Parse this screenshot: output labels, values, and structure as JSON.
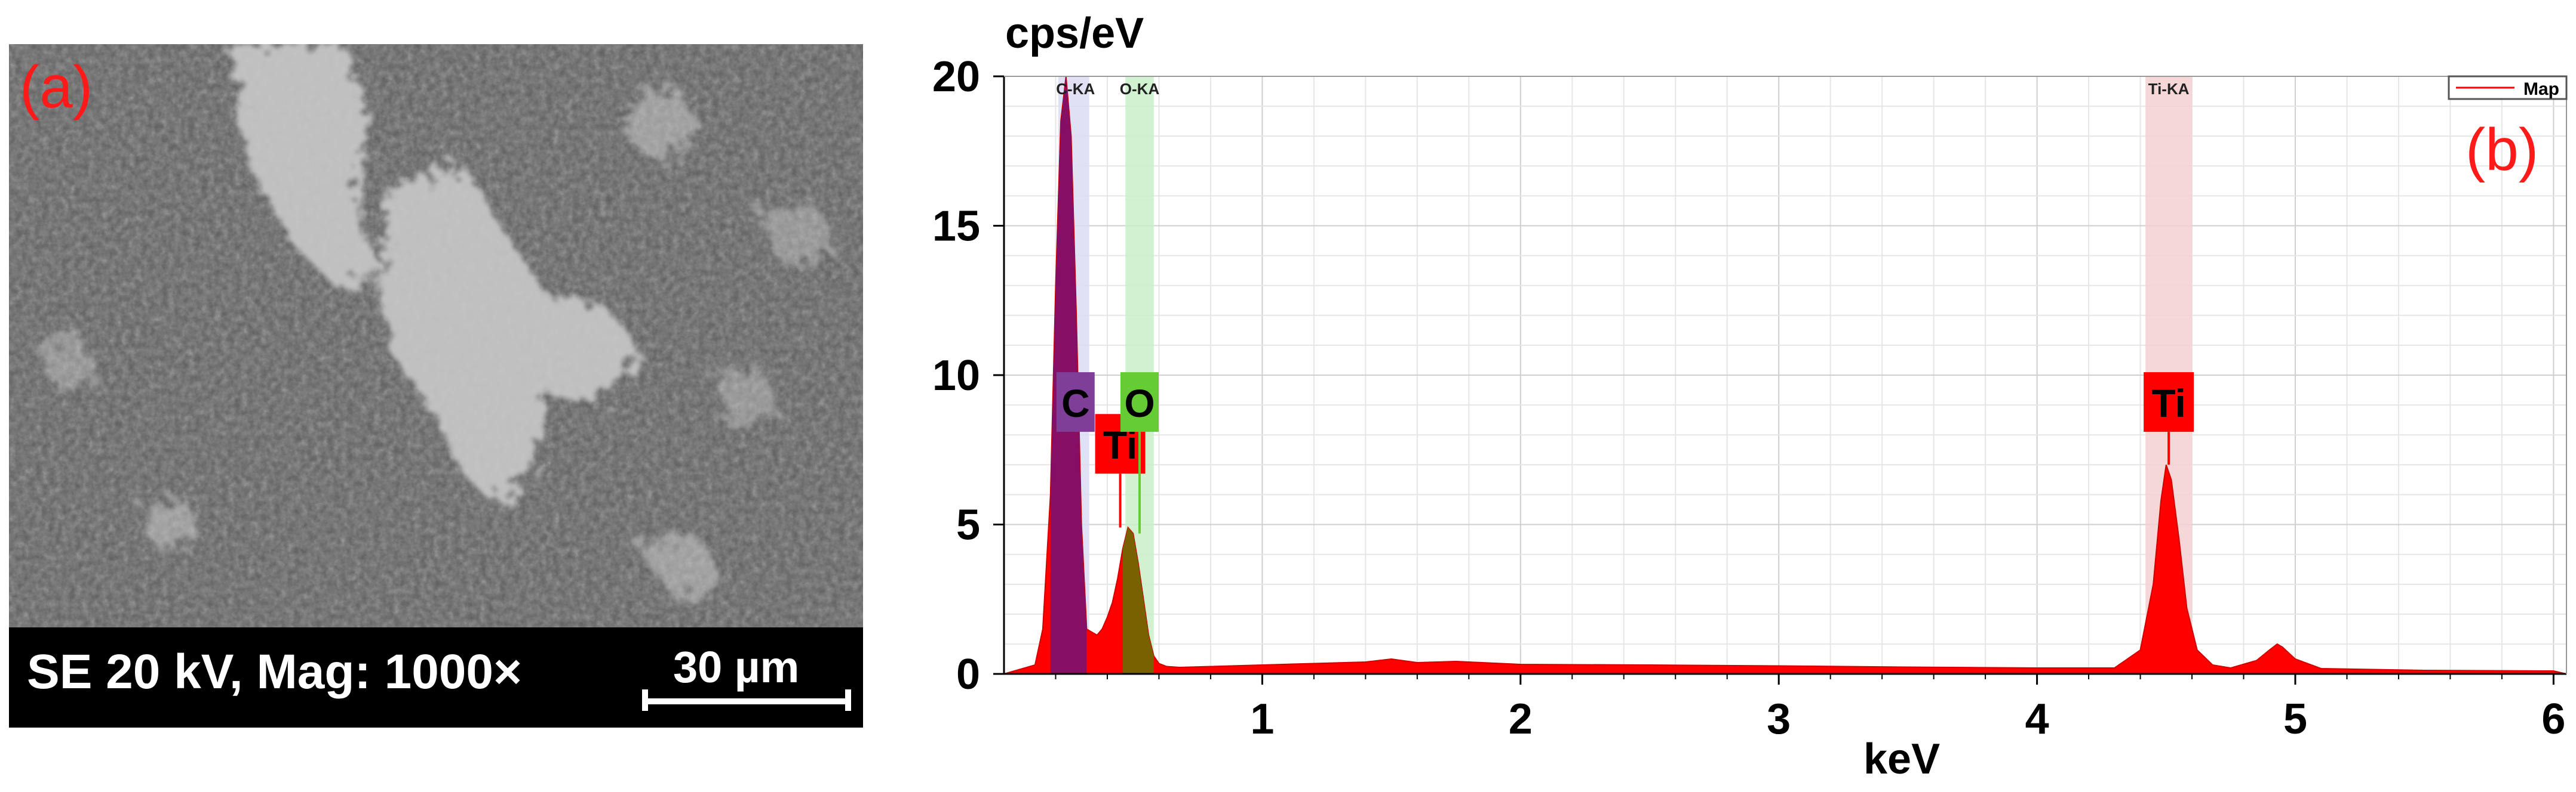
{
  "panel_a": {
    "label": "(a)",
    "info_text": "SE 20 kV, Mag: 1000×",
    "scale_bar_text": "30 µm"
  },
  "panel_b": {
    "label": "(b)",
    "legend": "Map"
  },
  "colors": {
    "spectrum": "#ff0000",
    "carbon_label": "#7f3f98",
    "oxygen_label": "#66cc33",
    "titanium_label": "#ff0000",
    "carbon_band": "#dcdcf5",
    "oxygen_band": "#c8f0c8",
    "titanium_band": "#f5d0d0",
    "panel_labels": "#ff1a1a"
  },
  "chart_data": {
    "type": "area",
    "title": "",
    "xlabel": "keV",
    "ylabel": "cps/eV",
    "xlim": [
      0.0,
      6.05
    ],
    "ylim": [
      0,
      20
    ],
    "xticks": [
      1,
      2,
      3,
      4,
      5,
      6
    ],
    "yticks": [
      0,
      5,
      10,
      15,
      20
    ],
    "grid": true,
    "legend": {
      "entries": [
        "Map"
      ],
      "placement": "top-right"
    },
    "series": [
      {
        "name": "Map",
        "x": [
          0.0,
          0.12,
          0.15,
          0.18,
          0.2,
          0.22,
          0.24,
          0.26,
          0.28,
          0.3,
          0.32,
          0.34,
          0.36,
          0.38,
          0.4,
          0.42,
          0.44,
          0.46,
          0.48,
          0.5,
          0.52,
          0.54,
          0.56,
          0.58,
          0.6,
          0.63,
          0.68,
          0.8,
          1.0,
          1.2,
          1.4,
          1.5,
          1.6,
          1.75,
          2.0,
          2.5,
          3.0,
          3.5,
          4.0,
          4.3,
          4.4,
          4.45,
          4.48,
          4.5,
          4.52,
          4.55,
          4.58,
          4.62,
          4.68,
          4.75,
          4.85,
          4.9,
          4.93,
          4.95,
          5.0,
          5.1,
          5.5,
          6.0,
          6.05
        ],
        "y": [
          0.0,
          0.3,
          1.5,
          6.0,
          13.0,
          18.5,
          20.0,
          18.0,
          12.0,
          5.0,
          1.5,
          1.4,
          1.3,
          1.5,
          1.9,
          2.4,
          3.2,
          4.2,
          4.9,
          4.7,
          3.7,
          2.5,
          1.3,
          0.6,
          0.35,
          0.25,
          0.22,
          0.25,
          0.3,
          0.35,
          0.4,
          0.5,
          0.38,
          0.42,
          0.32,
          0.3,
          0.27,
          0.23,
          0.2,
          0.2,
          0.8,
          3.0,
          5.8,
          7.0,
          6.5,
          4.5,
          2.2,
          0.8,
          0.3,
          0.2,
          0.45,
          0.8,
          1.0,
          0.9,
          0.5,
          0.18,
          0.12,
          0.1,
          0.0
        ]
      }
    ],
    "annotations": [
      {
        "text": "C-KA",
        "x": 0.277,
        "type": "line-label",
        "color_key": "carbon_band",
        "band": [
          0.21,
          0.33
        ]
      },
      {
        "text": "O-KA",
        "x": 0.525,
        "type": "line-label",
        "color_key": "oxygen_band",
        "band": [
          0.47,
          0.58
        ]
      },
      {
        "text": "Ti-KA",
        "x": 4.51,
        "type": "line-label",
        "color_key": "titanium_band",
        "band": [
          4.42,
          4.6
        ]
      },
      {
        "text": "C",
        "x": 0.277,
        "y": 9.1,
        "type": "element-label",
        "color_key": "carbon_label"
      },
      {
        "text": "Ti",
        "x": 0.45,
        "y": 7.7,
        "type": "element-label",
        "color_key": "titanium_label"
      },
      {
        "text": "O",
        "x": 0.525,
        "y": 9.1,
        "type": "element-label",
        "color_key": "oxygen_label"
      },
      {
        "text": "Ti",
        "x": 4.51,
        "y": 9.1,
        "type": "element-label",
        "color_key": "titanium_label"
      }
    ]
  }
}
